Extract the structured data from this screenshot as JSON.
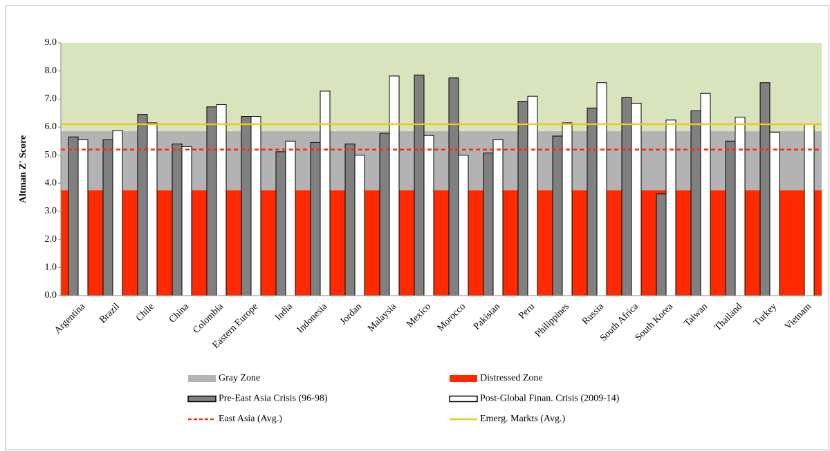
{
  "chart_data": {
    "type": "bar",
    "y_label": "Altman Z' Score",
    "categories": [
      "Argentina",
      "Brazil",
      "Chile",
      "China",
      "Colombia",
      "Eastern Europe",
      "India",
      "Indonesia",
      "Jordan",
      "Malaysia",
      "Mexico",
      "Morocco",
      "Pakistan",
      "Peru",
      "Philippines",
      "Russia",
      "South Africa",
      "South Korea",
      "Taiwan",
      "Thailand",
      "Turkey",
      "Vietnam"
    ],
    "background": "#d8e4bc",
    "zones": [
      {
        "name": "Gray Zone",
        "color": "#b3b3b3",
        "range": [
          3.75,
          5.85
        ]
      },
      {
        "name": "Distressed Zone",
        "color": "#ff2a00",
        "range": [
          0,
          3.75
        ]
      }
    ],
    "series": [
      {
        "name": "Pre-East Asia Crisis (96-98)",
        "color": "#808080",
        "values": [
          5.65,
          5.55,
          6.45,
          5.4,
          6.72,
          6.38,
          5.12,
          5.45,
          5.4,
          5.78,
          7.85,
          7.75,
          5.08,
          6.92,
          5.68,
          6.68,
          7.05,
          3.62,
          6.58,
          5.5,
          7.58,
          null
        ]
      },
      {
        "name": "Post-Global Finan. Crisis (2009-14)",
        "color": "#ffffff",
        "values": [
          5.55,
          5.88,
          6.15,
          5.3,
          6.8,
          6.38,
          5.5,
          7.28,
          5.0,
          7.82,
          5.7,
          5.0,
          5.55,
          7.1,
          6.15,
          7.58,
          6.85,
          6.25,
          7.2,
          6.35,
          5.82,
          6.1
        ]
      }
    ],
    "lines": [
      {
        "name": "East Asia (Avg.)",
        "color": "#ff2a00",
        "dash": true,
        "value": 5.2
      },
      {
        "name": "Emerg. Markts (Avg.)",
        "color": "#f5c518",
        "dash": false,
        "value": 6.1
      }
    ],
    "ylim": [
      0,
      9
    ],
    "yticks": [
      {
        "value": 0,
        "label": "0.0"
      },
      {
        "value": 1,
        "label": "1.0"
      },
      {
        "value": 2,
        "label": "2.0"
      },
      {
        "value": 3,
        "label": "3.0"
      },
      {
        "value": 4,
        "label": "4.0"
      },
      {
        "value": 5,
        "label": "5.0"
      },
      {
        "value": 6,
        "label": "6.0"
      },
      {
        "value": 7,
        "label": "7.0"
      },
      {
        "value": 8,
        "label": "8.0"
      },
      {
        "value": 9,
        "label": "9.0"
      }
    ]
  }
}
